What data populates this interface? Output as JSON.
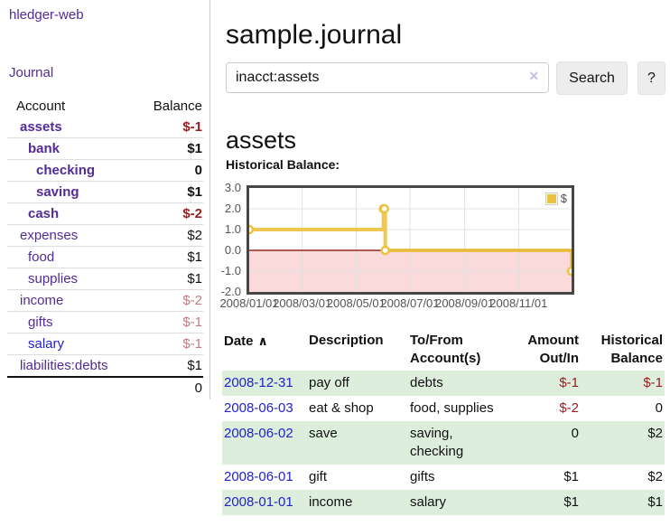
{
  "theme": {
    "purple_link": "#542a96",
    "blue_link": "#2222cc",
    "negative_strong": "#9b1c1c",
    "negative_muted": "#c17d7d",
    "row_stripe_green": "#ddeedd",
    "series_gold": "#edc240",
    "zero_line_red": "#800000",
    "negative_region_pink": "#fadada",
    "grid_border": "#474747",
    "grid_line": "#e0e0e0"
  },
  "sidebar": {
    "brand": "hledger-web",
    "nav_journal": "Journal",
    "accounts": {
      "col_account": "Account",
      "col_balance": "Balance",
      "rows": [
        {
          "name": "assets",
          "balance": "$-1",
          "level": 1,
          "bold": true
        },
        {
          "name": "bank",
          "balance": "$1",
          "level": 2,
          "bold": true
        },
        {
          "name": "checking",
          "balance": "0",
          "level": 3,
          "bold": true
        },
        {
          "name": "saving",
          "balance": "$1",
          "level": 3,
          "bold": true
        },
        {
          "name": "cash",
          "balance": "$-2",
          "level": 2,
          "bold": true
        },
        {
          "name": "expenses",
          "balance": "$2",
          "level": 1,
          "bold": false
        },
        {
          "name": "food",
          "balance": "$1",
          "level": 2,
          "bold": false
        },
        {
          "name": "supplies",
          "balance": "$1",
          "level": 2,
          "bold": false
        },
        {
          "name": "income",
          "balance": "$-2",
          "level": 1,
          "bold": false
        },
        {
          "name": "gifts",
          "balance": "$-1",
          "level": 2,
          "bold": false
        },
        {
          "name": "salary",
          "balance": "$-1",
          "level": 2,
          "bold": false,
          "unvisited": true
        },
        {
          "name": "liabilities:debts",
          "balance": "$1",
          "level": 1,
          "bold": false
        }
      ],
      "total": "0"
    }
  },
  "header": {
    "title": "sample.journal",
    "search": {
      "value": "inacct:assets",
      "clear_icon": "×",
      "search_button": "Search",
      "help_button": "?"
    }
  },
  "main": {
    "account_heading": "assets",
    "chart_title": "Historical Balance:"
  },
  "chart_data": {
    "type": "line",
    "step": true,
    "title": "Historical Balance:",
    "legend": [
      {
        "label": "$",
        "color": "#edc240"
      }
    ],
    "legend_position": "top-right",
    "grid": true,
    "xlim": [
      "2008-01-01",
      "2008-12-31"
    ],
    "ylim": [
      -2,
      3
    ],
    "y_ticks": [
      "3.0",
      "2.0",
      "1.0",
      "0.0",
      "-1.0",
      "-2.0"
    ],
    "x_ticks": [
      "2008/01/01",
      "2008/03/01",
      "2008/05/01",
      "2008/07/01",
      "2008/09/01",
      "2008/11/01"
    ],
    "series": [
      {
        "name": "$",
        "color": "#edc240",
        "points": [
          [
            "2008-01-01",
            1
          ],
          [
            "2008-06-01",
            2
          ],
          [
            "2008-06-02",
            2
          ],
          [
            "2008-06-03",
            0
          ],
          [
            "2008-12-31",
            -1
          ]
        ]
      }
    ]
  },
  "transactions": {
    "sort_icon": "∧",
    "headers": [
      {
        "line1": "Date",
        "line2": "",
        "align": "left",
        "sorted": true
      },
      {
        "line1": "Description",
        "line2": "",
        "align": "left"
      },
      {
        "line1": "To/From",
        "line2": "Account(s)",
        "align": "left"
      },
      {
        "line1": "Amount",
        "line2": "Out/In",
        "align": "right"
      },
      {
        "line1": "Historical",
        "line2": "Balance",
        "align": "right"
      }
    ],
    "rows": [
      {
        "date": "2008-12-31",
        "description": "pay off",
        "accounts": "debts",
        "amount": "$-1",
        "balance": "$-1"
      },
      {
        "date": "2008-06-03",
        "description": "eat & shop",
        "accounts": "food, supplies",
        "amount": "$-2",
        "balance": "0"
      },
      {
        "date": "2008-06-02",
        "description": "save",
        "accounts": "saving, checking",
        "amount": "0",
        "balance": "$2"
      },
      {
        "date": "2008-06-01",
        "description": "gift",
        "accounts": "gifts",
        "amount": "$1",
        "balance": "$2"
      },
      {
        "date": "2008-01-01",
        "description": "income",
        "accounts": "salary",
        "amount": "$1",
        "balance": "$1"
      }
    ]
  }
}
